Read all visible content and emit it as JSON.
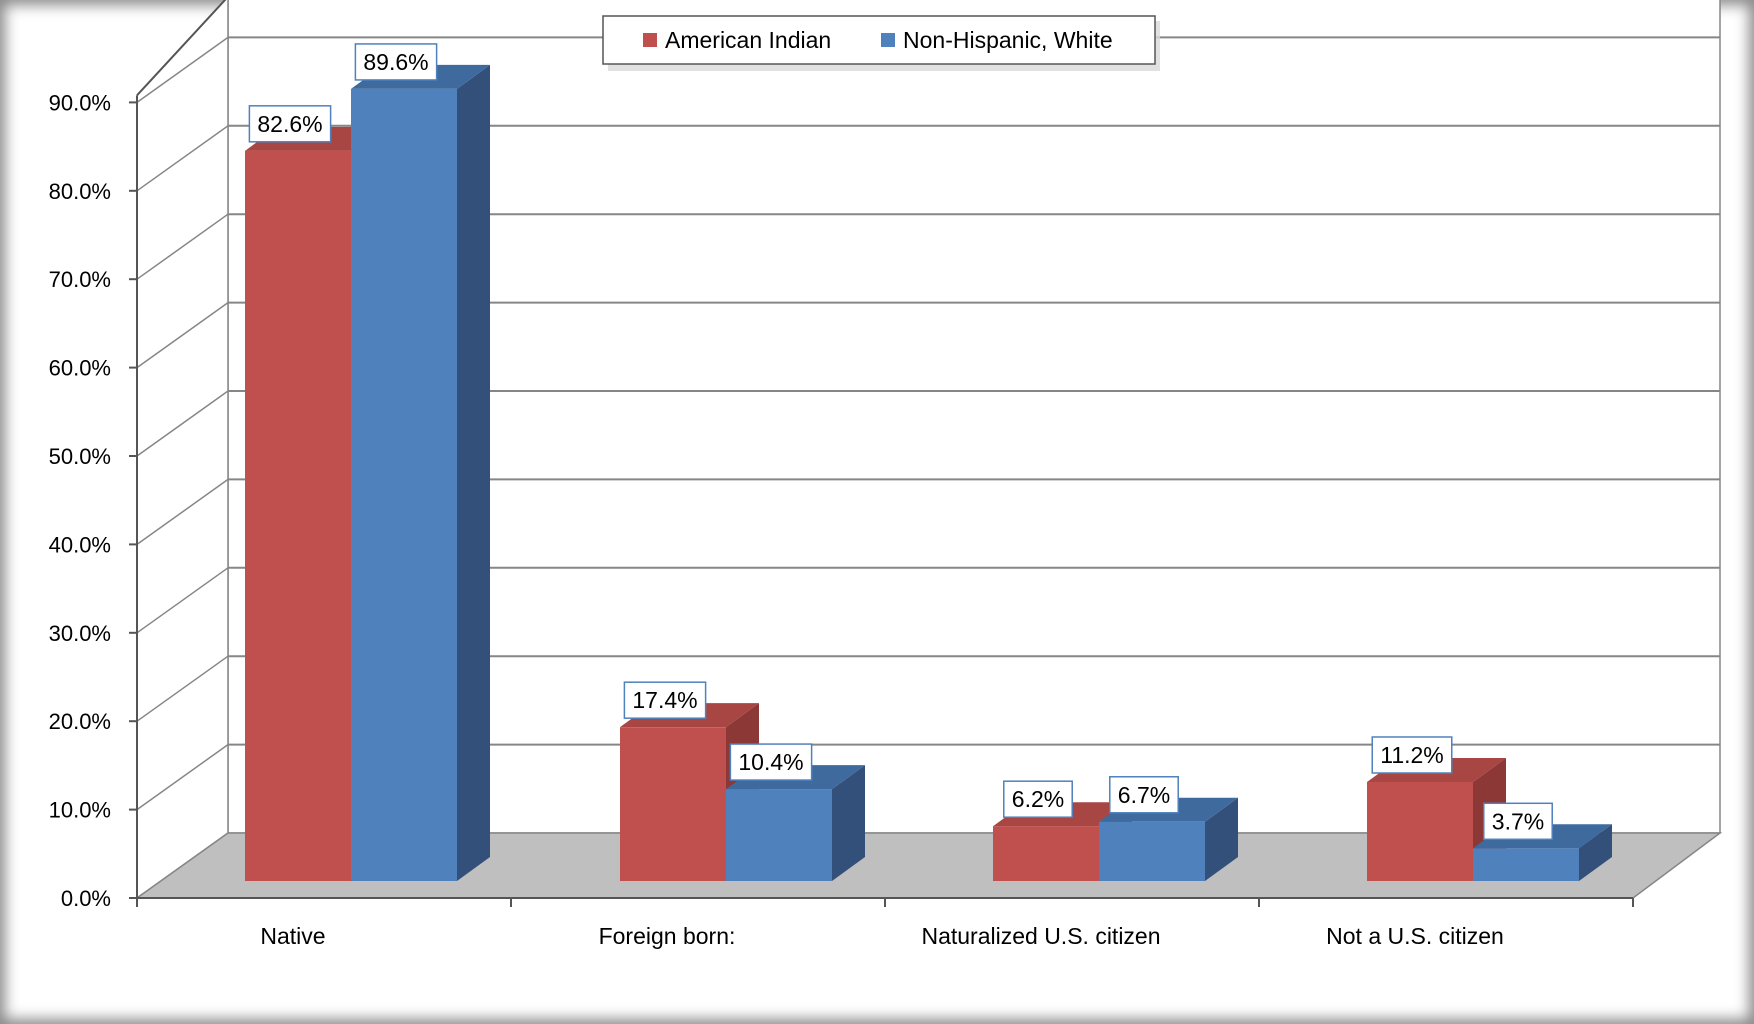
{
  "chart_data": {
    "type": "bar",
    "style": "3d-clustered-column",
    "categories": [
      "Native",
      "Foreign born:",
      "Naturalized U.S. citizen",
      "Not a U.S. citizen"
    ],
    "series": [
      {
        "name": "American Indian",
        "values": [
          82.6,
          17.4,
          6.2,
          11.2
        ],
        "labels": [
          "82.6%",
          "17.4%",
          "6.2%",
          "11.2%"
        ],
        "color": "#c0504d",
        "side_color": "#8c3836",
        "top_color": "#a84643"
      },
      {
        "name": "Non-Hispanic, White",
        "values": [
          89.6,
          10.4,
          6.7,
          3.7
        ],
        "labels": [
          "89.6%",
          "10.4%",
          "6.7%",
          "3.7%"
        ],
        "color": "#4f81bd",
        "side_color": "#33507a",
        "top_color": "#3f6a9e"
      }
    ],
    "y_ticks": [
      "0.0%",
      "10.0%",
      "20.0%",
      "30.0%",
      "40.0%",
      "50.0%",
      "60.0%",
      "70.0%",
      "80.0%",
      "90.0%"
    ],
    "ylim": [
      0,
      90
    ],
    "grid": true,
    "legend_position": "top-center",
    "title": "",
    "xlabel": "",
    "ylabel": "",
    "colors": {
      "floor": "#bfbfbf",
      "grid": "#868686",
      "label_border": "#4f81bd"
    }
  }
}
